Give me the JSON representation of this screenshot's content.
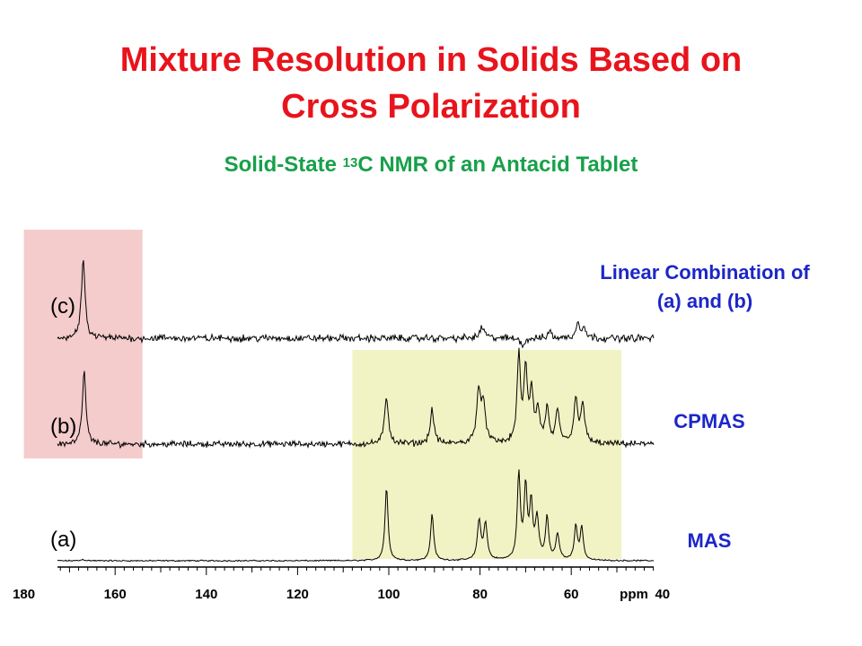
{
  "header": {
    "title_line1": "Mixture Resolution in Solids Based on",
    "title_line2": "Cross Polarization",
    "subtitle_pre": "Solid-State ",
    "subtitle_sup": "13",
    "subtitle_post": "C NMR of an Antacid Tablet"
  },
  "colors": {
    "title": "#e8141c",
    "subtitle": "#18a04a",
    "labels": "#1c26c8",
    "red_band": "#f4cccc",
    "yellow_band": "#f2f3c4",
    "trace": "#000000"
  },
  "chart_data": {
    "type": "line",
    "x_unit": "ppm",
    "x_reversed": true,
    "xlim": [
      200,
      28
    ],
    "x_ticks": [
      180,
      160,
      140,
      120,
      100,
      80,
      60,
      40
    ],
    "highlight_regions": [
      {
        "from": 180,
        "to": 154,
        "color": "#f4cccc"
      },
      {
        "from": 108,
        "to": 49,
        "color": "#f2f3c4"
      }
    ],
    "series": [
      {
        "name": "MAS",
        "tag": "(a)",
        "noise": 0.1,
        "peaks": [
          {
            "ppm": 167,
            "h": 0.15,
            "w": 0.5
          },
          {
            "ppm": 100.5,
            "h": 8.6,
            "w": 0.4
          },
          {
            "ppm": 90.5,
            "h": 5.5,
            "w": 0.4
          },
          {
            "ppm": 80.2,
            "h": 4.6,
            "w": 0.45
          },
          {
            "ppm": 78.8,
            "h": 4.2,
            "w": 0.45
          },
          {
            "ppm": 71.5,
            "h": 10.0,
            "w": 0.4
          },
          {
            "ppm": 70.0,
            "h": 8.3,
            "w": 0.4
          },
          {
            "ppm": 68.8,
            "h": 6.4,
            "w": 0.4
          },
          {
            "ppm": 67.5,
            "h": 4.8,
            "w": 0.45
          },
          {
            "ppm": 65.3,
            "h": 5.0,
            "w": 0.4
          },
          {
            "ppm": 63.0,
            "h": 3.0,
            "w": 0.45
          },
          {
            "ppm": 59.0,
            "h": 4.0,
            "w": 0.4
          },
          {
            "ppm": 57.7,
            "h": 3.8,
            "w": 0.4
          }
        ]
      },
      {
        "name": "CPMAS",
        "tag": "(b)",
        "noise": 0.45,
        "peaks": [
          {
            "ppm": 166.8,
            "h": 8.6,
            "w": 0.45
          },
          {
            "ppm": 100.5,
            "h": 5.5,
            "w": 0.5
          },
          {
            "ppm": 90.5,
            "h": 4.0,
            "w": 0.5
          },
          {
            "ppm": 80.3,
            "h": 6.2,
            "w": 0.55
          },
          {
            "ppm": 79.2,
            "h": 4.2,
            "w": 0.5
          },
          {
            "ppm": 71.5,
            "h": 10.0,
            "w": 0.45
          },
          {
            "ppm": 70.0,
            "h": 8.2,
            "w": 0.45
          },
          {
            "ppm": 68.7,
            "h": 5.8,
            "w": 0.45
          },
          {
            "ppm": 67.3,
            "h": 3.6,
            "w": 0.5
          },
          {
            "ppm": 65.3,
            "h": 4.0,
            "w": 0.45
          },
          {
            "ppm": 63.0,
            "h": 3.6,
            "w": 0.5
          },
          {
            "ppm": 59.0,
            "h": 5.0,
            "w": 0.5
          },
          {
            "ppm": 57.5,
            "h": 4.6,
            "w": 0.5
          }
        ]
      },
      {
        "name": "Linear Combination of (a) and (b)",
        "tag": "(c)",
        "noise": 0.55,
        "peaks": [
          {
            "ppm": 167.0,
            "h": 10.0,
            "w": 0.45
          },
          {
            "ppm": 79.5,
            "h": 1.4,
            "w": 0.6
          },
          {
            "ppm": 70.5,
            "h": -0.8,
            "w": 0.6
          },
          {
            "ppm": 64.8,
            "h": 0.9,
            "w": 0.5
          },
          {
            "ppm": 58.5,
            "h": 1.9,
            "w": 0.5
          },
          {
            "ppm": 57.2,
            "h": 1.3,
            "w": 0.5
          }
        ]
      }
    ]
  },
  "labels": {
    "tag_a": "(a)",
    "tag_b": "(b)",
    "tag_c": "(c)",
    "right_a": "MAS",
    "right_b": "CPMAS",
    "right_c_line1": "Linear Combination of",
    "right_c_line2": "(a) and (b)",
    "axis_unit": "ppm"
  }
}
